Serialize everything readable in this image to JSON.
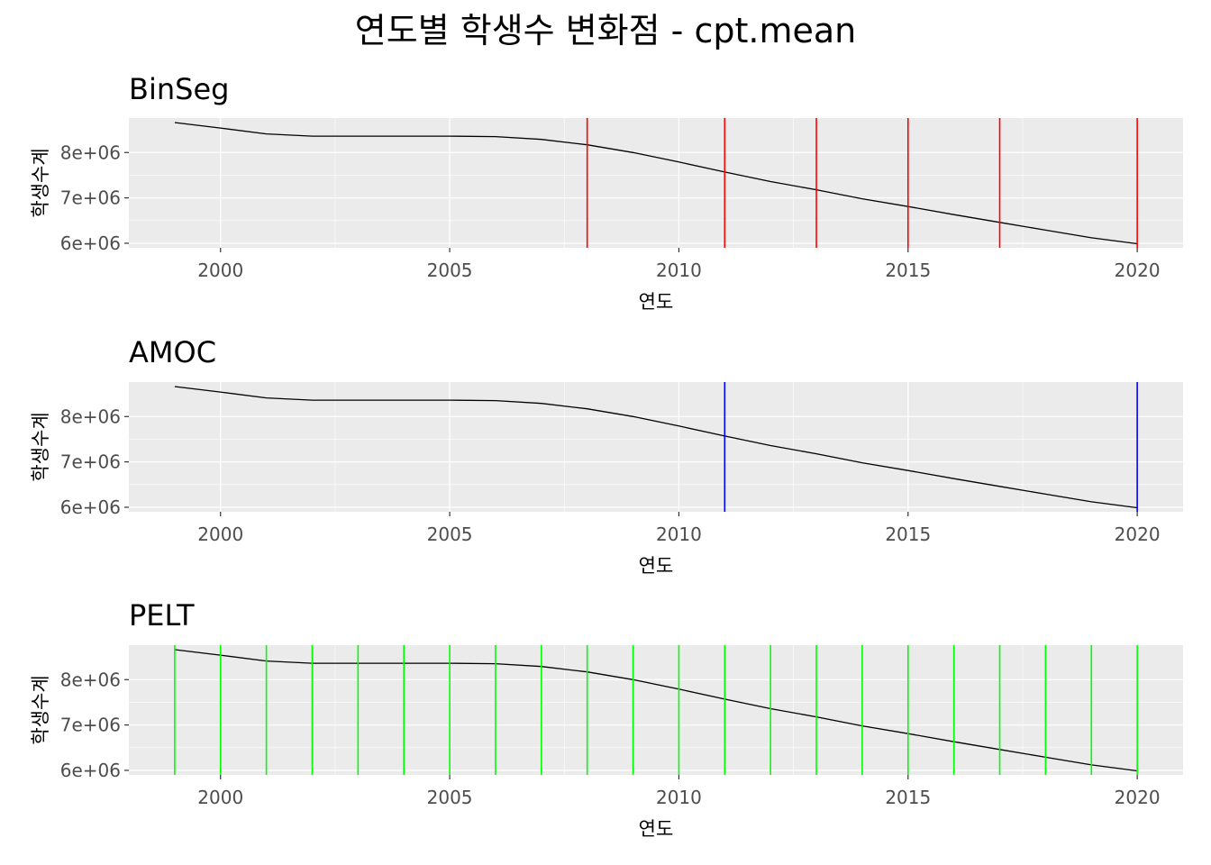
{
  "title": "연도별 학생수 변화점 - cpt.mean",
  "chart_data": [
    {
      "type": "line",
      "title": "BinSeg",
      "xlabel": "연도",
      "ylabel": "학생수계",
      "x": [
        1999,
        2000,
        2001,
        2002,
        2003,
        2004,
        2005,
        2006,
        2007,
        2008,
        2009,
        2010,
        2011,
        2012,
        2013,
        2014,
        2015,
        2016,
        2017,
        2018,
        2019,
        2020
      ],
      "series": [
        {
          "values": [
            8660000,
            8540000,
            8410000,
            8360000,
            8360000,
            8360000,
            8360000,
            8350000,
            8290000,
            8170000,
            8000000,
            7790000,
            7570000,
            7360000,
            7180000,
            6980000,
            6810000,
            6630000,
            6460000,
            6290000,
            6120000,
            5990000
          ]
        }
      ],
      "changepoints": [
        2008,
        2011,
        2013,
        2015,
        2017,
        2020
      ],
      "changepoint_color": "#ff0000",
      "xlim": [
        1998,
        2021
      ],
      "ylim": [
        5900000,
        8760000
      ],
      "xticks": [
        2000,
        2005,
        2010,
        2015,
        2020
      ],
      "xtick_labels": [
        "2000",
        "2005",
        "2010",
        "2015",
        "2020"
      ],
      "yticks": [
        6000000,
        7000000,
        8000000
      ],
      "ytick_labels": [
        "6e+06",
        "7e+06",
        "8e+06"
      ],
      "grid": true
    },
    {
      "type": "line",
      "title": "AMOC",
      "xlabel": "연도",
      "ylabel": "학생수계",
      "x": [
        1999,
        2000,
        2001,
        2002,
        2003,
        2004,
        2005,
        2006,
        2007,
        2008,
        2009,
        2010,
        2011,
        2012,
        2013,
        2014,
        2015,
        2016,
        2017,
        2018,
        2019,
        2020
      ],
      "series": [
        {
          "values": [
            8660000,
            8540000,
            8410000,
            8360000,
            8360000,
            8360000,
            8360000,
            8350000,
            8290000,
            8170000,
            8000000,
            7790000,
            7570000,
            7360000,
            7180000,
            6980000,
            6810000,
            6630000,
            6460000,
            6290000,
            6120000,
            5990000
          ]
        }
      ],
      "changepoints": [
        2011,
        2020
      ],
      "changepoint_color": "#0000ff",
      "xlim": [
        1998,
        2021
      ],
      "ylim": [
        5900000,
        8760000
      ],
      "xticks": [
        2000,
        2005,
        2010,
        2015,
        2020
      ],
      "xtick_labels": [
        "2000",
        "2005",
        "2010",
        "2015",
        "2020"
      ],
      "yticks": [
        6000000,
        7000000,
        8000000
      ],
      "ytick_labels": [
        "6e+06",
        "7e+06",
        "8e+06"
      ],
      "grid": true
    },
    {
      "type": "line",
      "title": "PELT",
      "xlabel": "연도",
      "ylabel": "학생수계",
      "x": [
        1999,
        2000,
        2001,
        2002,
        2003,
        2004,
        2005,
        2006,
        2007,
        2008,
        2009,
        2010,
        2011,
        2012,
        2013,
        2014,
        2015,
        2016,
        2017,
        2018,
        2019,
        2020
      ],
      "series": [
        {
          "values": [
            8660000,
            8540000,
            8410000,
            8360000,
            8360000,
            8360000,
            8360000,
            8350000,
            8290000,
            8170000,
            8000000,
            7790000,
            7570000,
            7360000,
            7180000,
            6980000,
            6810000,
            6630000,
            6460000,
            6290000,
            6120000,
            5990000
          ]
        }
      ],
      "changepoints": [
        1999,
        2000,
        2001,
        2002,
        2003,
        2004,
        2005,
        2006,
        2007,
        2008,
        2009,
        2010,
        2011,
        2012,
        2013,
        2014,
        2015,
        2016,
        2017,
        2018,
        2019,
        2020
      ],
      "changepoint_color": "#00ff00",
      "xlim": [
        1998,
        2021
      ],
      "ylim": [
        5900000,
        8760000
      ],
      "xticks": [
        2000,
        2005,
        2010,
        2015,
        2020
      ],
      "xtick_labels": [
        "2000",
        "2005",
        "2010",
        "2015",
        "2020"
      ],
      "yticks": [
        6000000,
        7000000,
        8000000
      ],
      "ytick_labels": [
        "6e+06",
        "7e+06",
        "8e+06"
      ],
      "grid": true
    }
  ]
}
